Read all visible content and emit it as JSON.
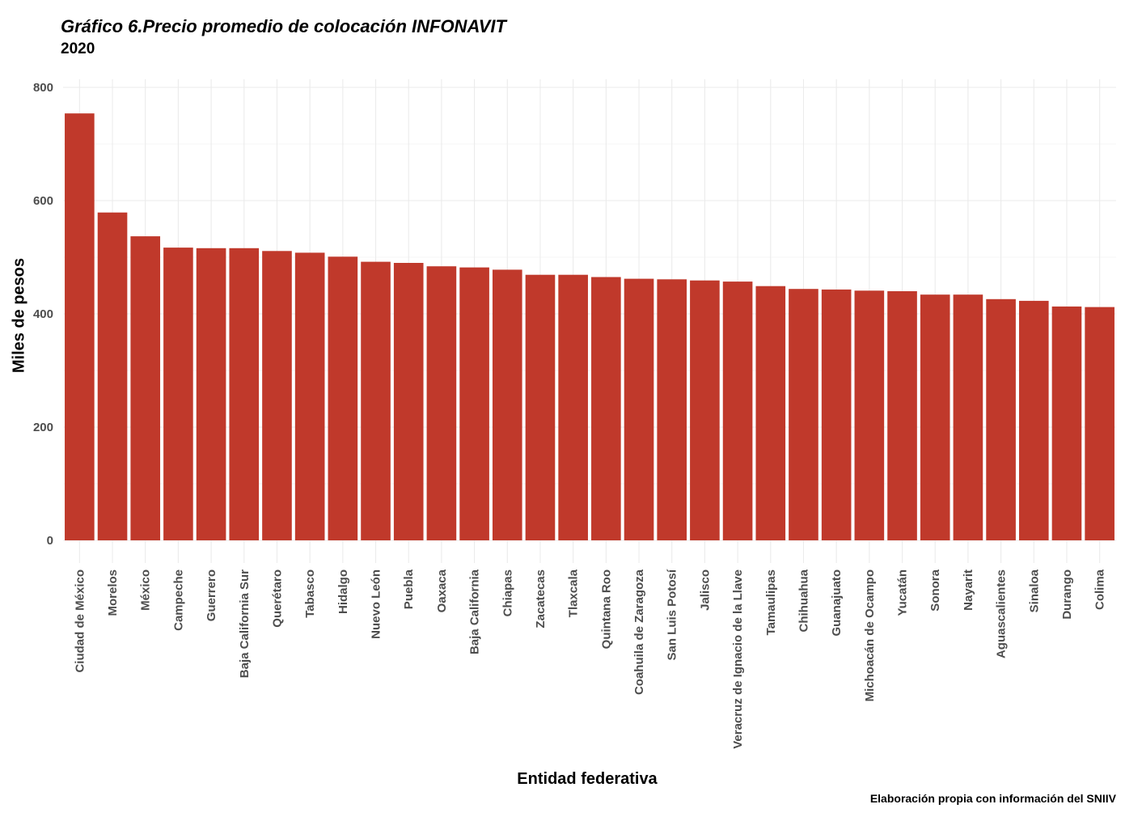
{
  "chart_data": {
    "type": "bar",
    "title": "Gráfico 6.Precio promedio de colocación INFONAVIT",
    "subtitle": "2020",
    "xlabel": "Entidad federativa",
    "ylabel": "Miles de pesos",
    "caption": "Elaboración propia con información del SNIIV",
    "ylim": [
      0,
      800
    ],
    "yticks": [
      0,
      200,
      400,
      600,
      800
    ],
    "grid": true,
    "bar_color": "#C0392B",
    "categories": [
      "Ciudad de México",
      "Morelos",
      "México",
      "Campeche",
      "Guerrero",
      "Baja California Sur",
      "Querétaro",
      "Tabasco",
      "Hidalgo",
      "Nuevo León",
      "Puebla",
      "Oaxaca",
      "Baja California",
      "Chiapas",
      "Zacatecas",
      "Tlaxcala",
      "Quintana Roo",
      "Coahuila de Zaragoza",
      "San Luis Potosí",
      "Jalisco",
      "Veracruz de Ignacio de la Llave",
      "Tamaulipas",
      "Chihuahua",
      "Guanajuato",
      "Michoacán de Ocampo",
      "Yucatán",
      "Sonora",
      "Nayarit",
      "Aguascalientes",
      "Sinaloa",
      "Durango",
      "Colima"
    ],
    "values": [
      754,
      579,
      537,
      517,
      516,
      516,
      511,
      508,
      501,
      492,
      490,
      484,
      482,
      478,
      469,
      469,
      465,
      462,
      461,
      459,
      457,
      449,
      444,
      443,
      441,
      440,
      434,
      434,
      426,
      423,
      413,
      412
    ]
  }
}
